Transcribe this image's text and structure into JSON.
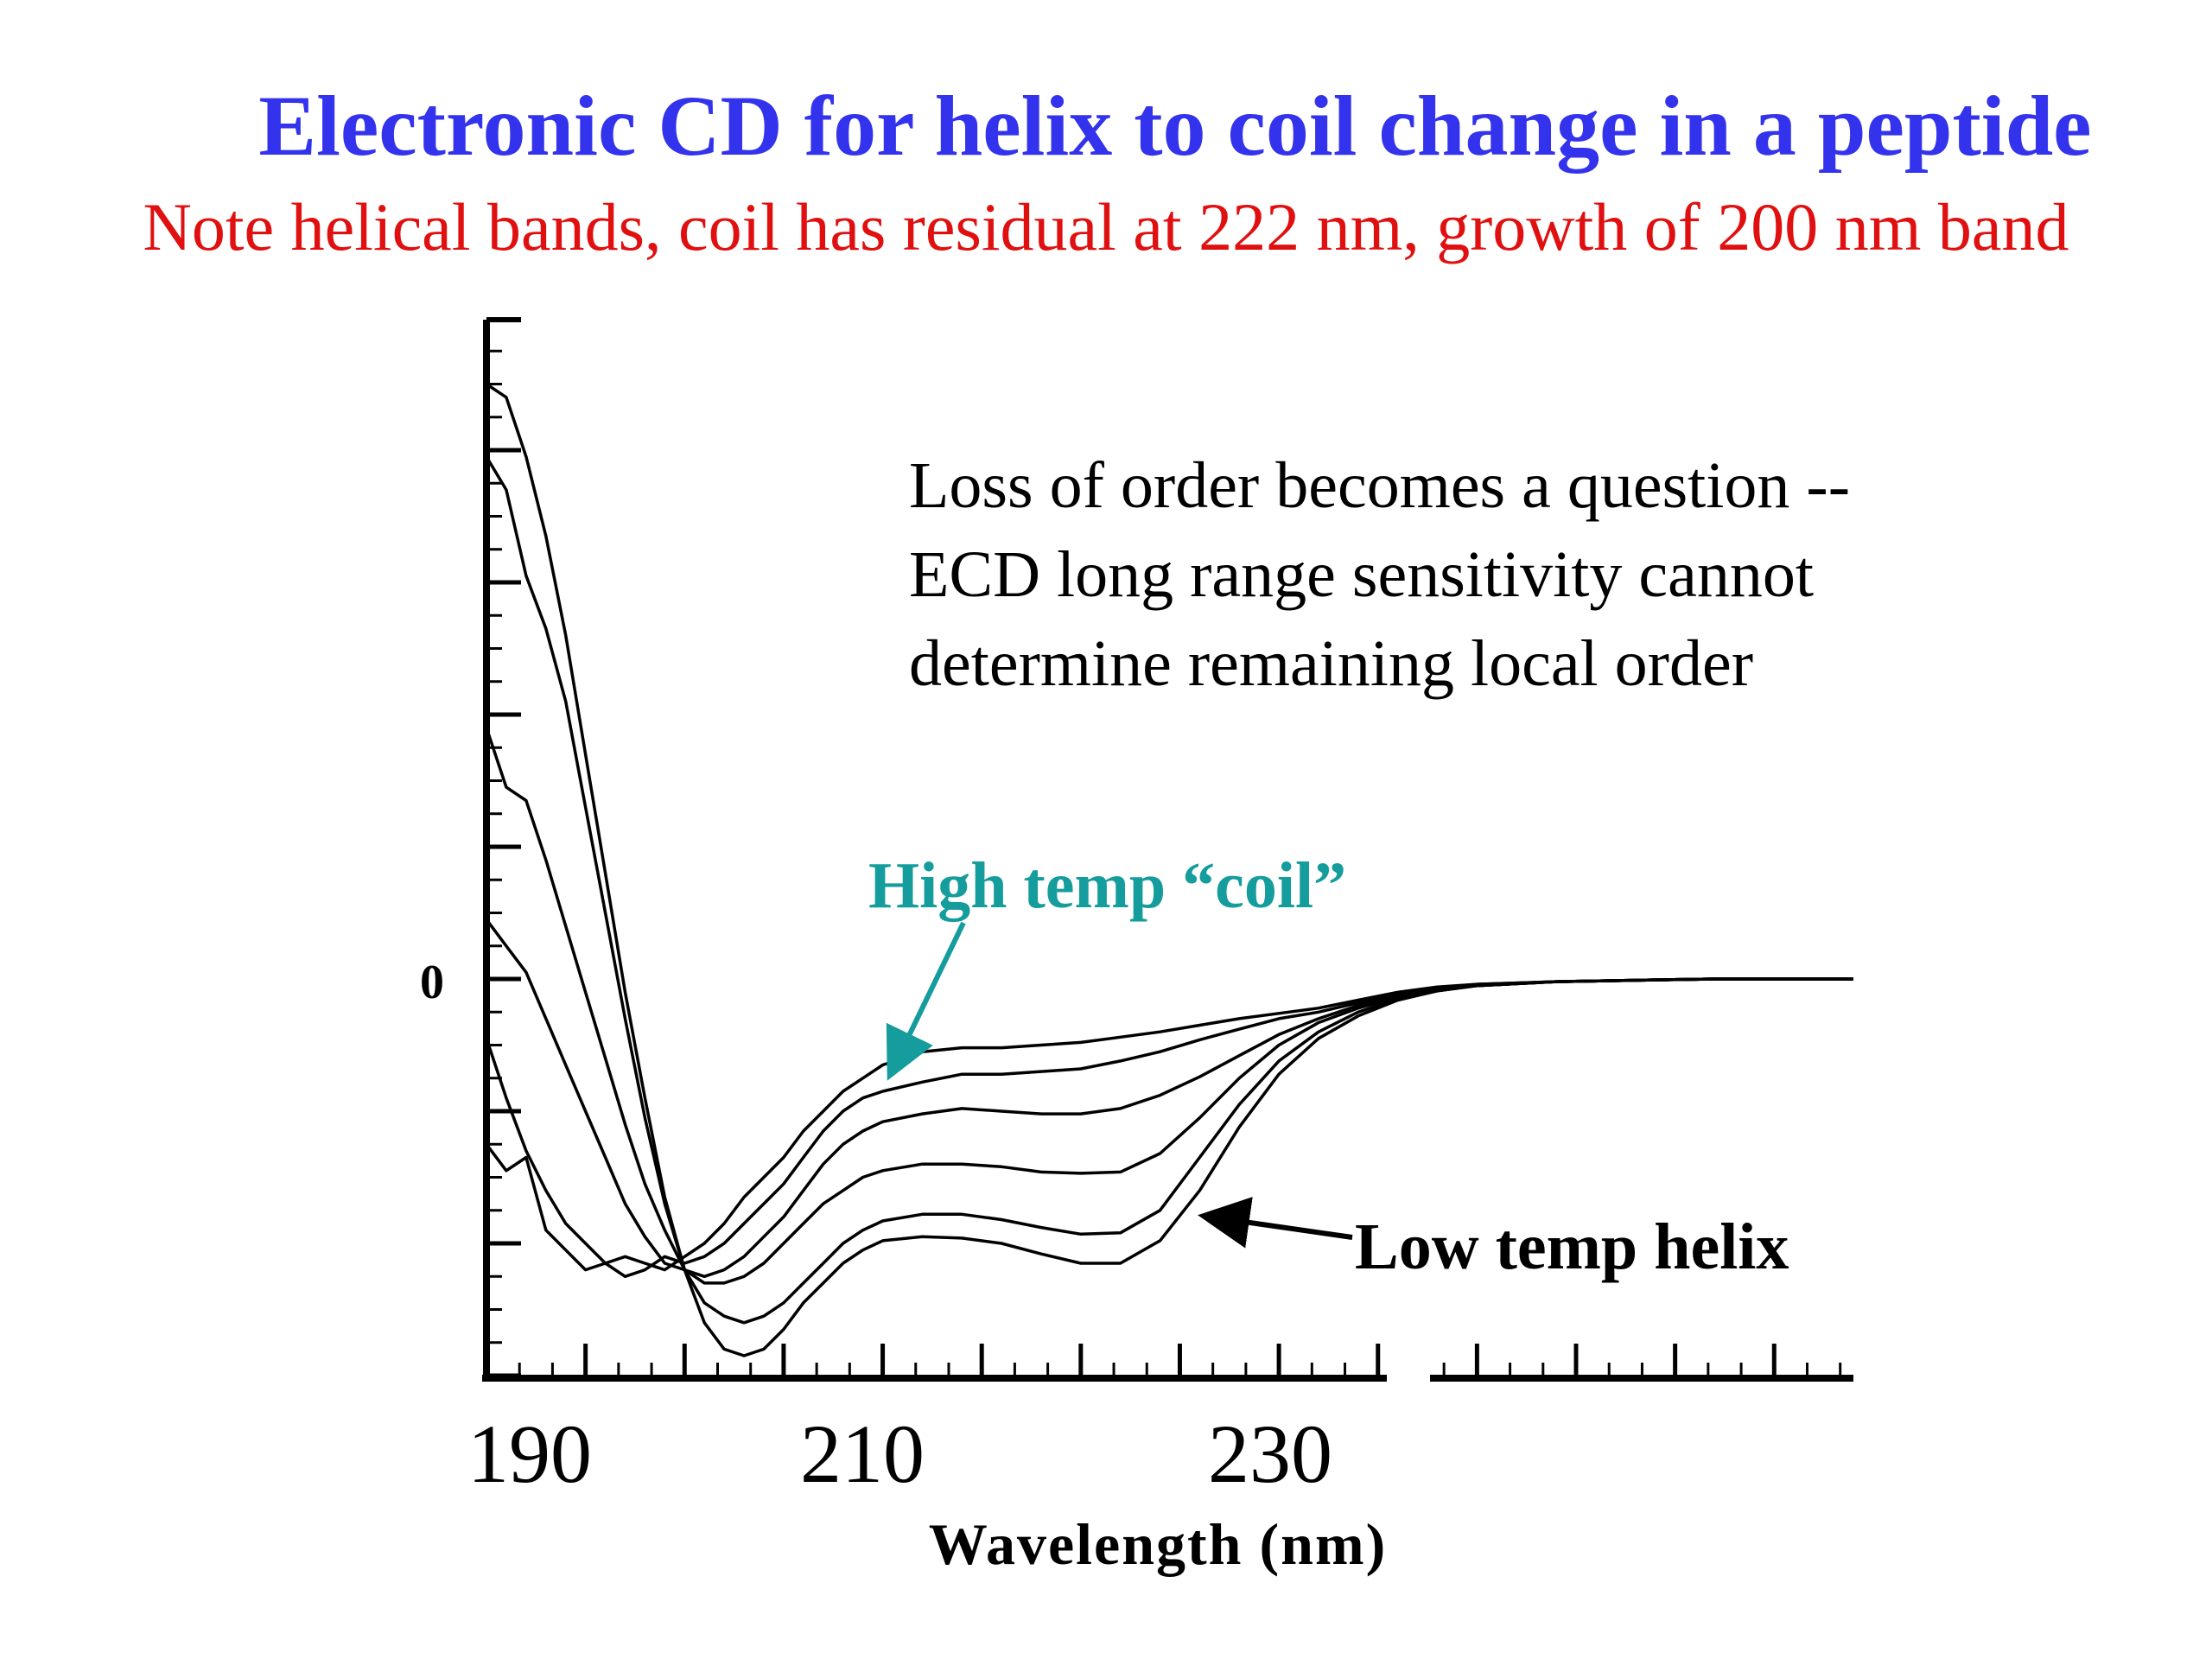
{
  "title": "Electronic CD for helix to coil change in a peptide",
  "subtitle": "Note helical bands, coil has residual at 222 nm, growth of 200 nm band",
  "colors": {
    "title": "#3333ee",
    "subtitle": "#e01010",
    "coil_label": "#159c9c",
    "line": "#000000"
  },
  "chart_data": {
    "type": "line",
    "xlabel": "Wavelength (nm)",
    "ylabel": "",
    "xlim": [
      190,
      259
    ],
    "ylim": [
      -3,
      5
    ],
    "x_tick_labels": [
      "190",
      "210",
      "230"
    ],
    "x_tick_values": [
      190,
      210,
      230
    ],
    "y_tick_labels": [
      "0"
    ],
    "y_tick_values": [
      0
    ],
    "grid": false,
    "annotations": [
      {
        "text_lines": [
          "Loss of order becomes a question --",
          "ECD long range sensitivity cannot",
          "determine remaining local order"
        ]
      },
      {
        "text": "High temp “coil”",
        "points_to": [
          210.2,
          -0.65
        ]
      },
      {
        "text": "Low temp helix",
        "points_to": [
          225.5,
          -1.8
        ]
      }
    ],
    "series": [
      {
        "x": [
          190,
          191,
          192,
          193,
          194,
          195,
          196,
          197,
          198,
          199,
          200,
          201,
          202,
          203,
          204,
          205,
          206,
          207,
          208,
          209,
          210,
          212,
          214,
          216,
          218,
          220,
          222,
          224,
          226,
          228,
          230,
          232,
          234,
          236,
          238,
          240,
          244,
          248,
          252,
          256,
          259
        ],
        "y": [
          -1.25,
          -1.45,
          -1.35,
          -1.9,
          -2.05,
          -2.2,
          -2.15,
          -2.1,
          -2.15,
          -2.2,
          -2.1,
          -2.0,
          -1.85,
          -1.65,
          -1.5,
          -1.35,
          -1.15,
          -1.0,
          -0.85,
          -0.75,
          -0.65,
          -0.55,
          -0.52,
          -0.52,
          -0.5,
          -0.48,
          -0.44,
          -0.4,
          -0.35,
          -0.3,
          -0.26,
          -0.22,
          -0.16,
          -0.1,
          -0.06,
          -0.04,
          -0.02,
          -0.01,
          0.0,
          0.0,
          0.0
        ]
      },
      {
        "x": [
          190,
          191,
          192,
          193,
          194,
          195,
          196,
          197,
          198,
          199,
          200,
          201,
          202,
          203,
          204,
          205,
          206,
          207,
          208,
          209,
          210,
          212,
          214,
          216,
          218,
          220,
          222,
          224,
          226,
          228,
          230,
          232,
          234,
          236,
          238,
          240,
          244,
          248,
          252,
          256,
          259
        ],
        "y": [
          -0.45,
          -0.9,
          -1.3,
          -1.6,
          -1.85,
          -2.0,
          -2.15,
          -2.25,
          -2.2,
          -2.1,
          -2.15,
          -2.1,
          -2.0,
          -1.85,
          -1.7,
          -1.55,
          -1.35,
          -1.15,
          -1.0,
          -0.9,
          -0.85,
          -0.78,
          -0.72,
          -0.72,
          -0.7,
          -0.68,
          -0.62,
          -0.55,
          -0.46,
          -0.38,
          -0.3,
          -0.25,
          -0.18,
          -0.12,
          -0.07,
          -0.04,
          -0.02,
          -0.01,
          0.0,
          0.0,
          0.0
        ]
      },
      {
        "x": [
          190,
          191,
          192,
          193,
          194,
          195,
          196,
          197,
          198,
          199,
          200,
          201,
          202,
          203,
          204,
          205,
          206,
          207,
          208,
          209,
          210,
          212,
          214,
          216,
          218,
          220,
          222,
          224,
          226,
          228,
          230,
          232,
          234,
          236,
          238,
          240,
          244,
          248,
          252,
          256,
          259
        ],
        "y": [
          0.45,
          0.25,
          0.05,
          -0.3,
          -0.65,
          -1.0,
          -1.35,
          -1.7,
          -1.95,
          -2.15,
          -2.2,
          -2.25,
          -2.2,
          -2.1,
          -1.95,
          -1.8,
          -1.6,
          -1.4,
          -1.25,
          -1.15,
          -1.08,
          -1.02,
          -0.98,
          -1.0,
          -1.02,
          -1.02,
          -0.98,
          -0.88,
          -0.74,
          -0.58,
          -0.42,
          -0.3,
          -0.2,
          -0.13,
          -0.08,
          -0.05,
          -0.02,
          -0.01,
          0.0,
          0.0,
          0.0
        ]
      },
      {
        "x": [
          190,
          191,
          192,
          193,
          194,
          195,
          196,
          197,
          198,
          199,
          200,
          201,
          202,
          203,
          204,
          205,
          206,
          207,
          208,
          209,
          210,
          212,
          214,
          216,
          218,
          220,
          222,
          224,
          226,
          228,
          230,
          232,
          234,
          236,
          238,
          240,
          244,
          248,
          252,
          256,
          259
        ],
        "y": [
          1.9,
          1.45,
          1.35,
          0.9,
          0.4,
          -0.1,
          -0.6,
          -1.1,
          -1.55,
          -1.9,
          -2.2,
          -2.3,
          -2.3,
          -2.25,
          -2.15,
          -2.0,
          -1.85,
          -1.7,
          -1.6,
          -1.5,
          -1.45,
          -1.4,
          -1.4,
          -1.42,
          -1.46,
          -1.47,
          -1.46,
          -1.32,
          -1.05,
          -0.75,
          -0.5,
          -0.33,
          -0.22,
          -0.14,
          -0.08,
          -0.05,
          -0.02,
          -0.01,
          0.0,
          0.0,
          0.0
        ]
      },
      {
        "x": [
          190,
          191,
          192,
          193,
          194,
          195,
          196,
          197,
          198,
          199,
          200,
          201,
          202,
          203,
          204,
          205,
          206,
          207,
          208,
          209,
          210,
          212,
          214,
          216,
          218,
          220,
          222,
          224,
          226,
          228,
          230,
          232,
          234,
          236,
          238,
          240,
          244,
          248,
          252,
          256,
          259
        ],
        "y": [
          3.95,
          3.7,
          3.05,
          2.65,
          2.1,
          1.3,
          0.5,
          -0.3,
          -1.05,
          -1.7,
          -2.2,
          -2.45,
          -2.55,
          -2.6,
          -2.55,
          -2.45,
          -2.3,
          -2.15,
          -2.0,
          -1.9,
          -1.83,
          -1.78,
          -1.78,
          -1.82,
          -1.88,
          -1.93,
          -1.92,
          -1.75,
          -1.35,
          -0.95,
          -0.62,
          -0.4,
          -0.25,
          -0.15,
          -0.09,
          -0.05,
          -0.02,
          -0.01,
          0.0,
          0.0,
          0.0
        ]
      },
      {
        "x": [
          190,
          191,
          192,
          193,
          194,
          195,
          196,
          197,
          198,
          199,
          200,
          201,
          202,
          203,
          204,
          205,
          206,
          207,
          208,
          209,
          210,
          212,
          214,
          216,
          218,
          220,
          222,
          224,
          226,
          228,
          230,
          232,
          234,
          236,
          238,
          240,
          244,
          248,
          252,
          256,
          259
        ],
        "y": [
          4.5,
          4.4,
          3.95,
          3.35,
          2.6,
          1.7,
          0.8,
          -0.1,
          -0.9,
          -1.65,
          -2.2,
          -2.6,
          -2.8,
          -2.85,
          -2.8,
          -2.65,
          -2.45,
          -2.3,
          -2.15,
          -2.05,
          -1.98,
          -1.95,
          -1.96,
          -2.0,
          -2.08,
          -2.15,
          -2.15,
          -1.98,
          -1.6,
          -1.12,
          -0.72,
          -0.45,
          -0.28,
          -0.16,
          -0.09,
          -0.05,
          -0.02,
          -0.01,
          0.0,
          0.0,
          0.0
        ]
      }
    ]
  }
}
